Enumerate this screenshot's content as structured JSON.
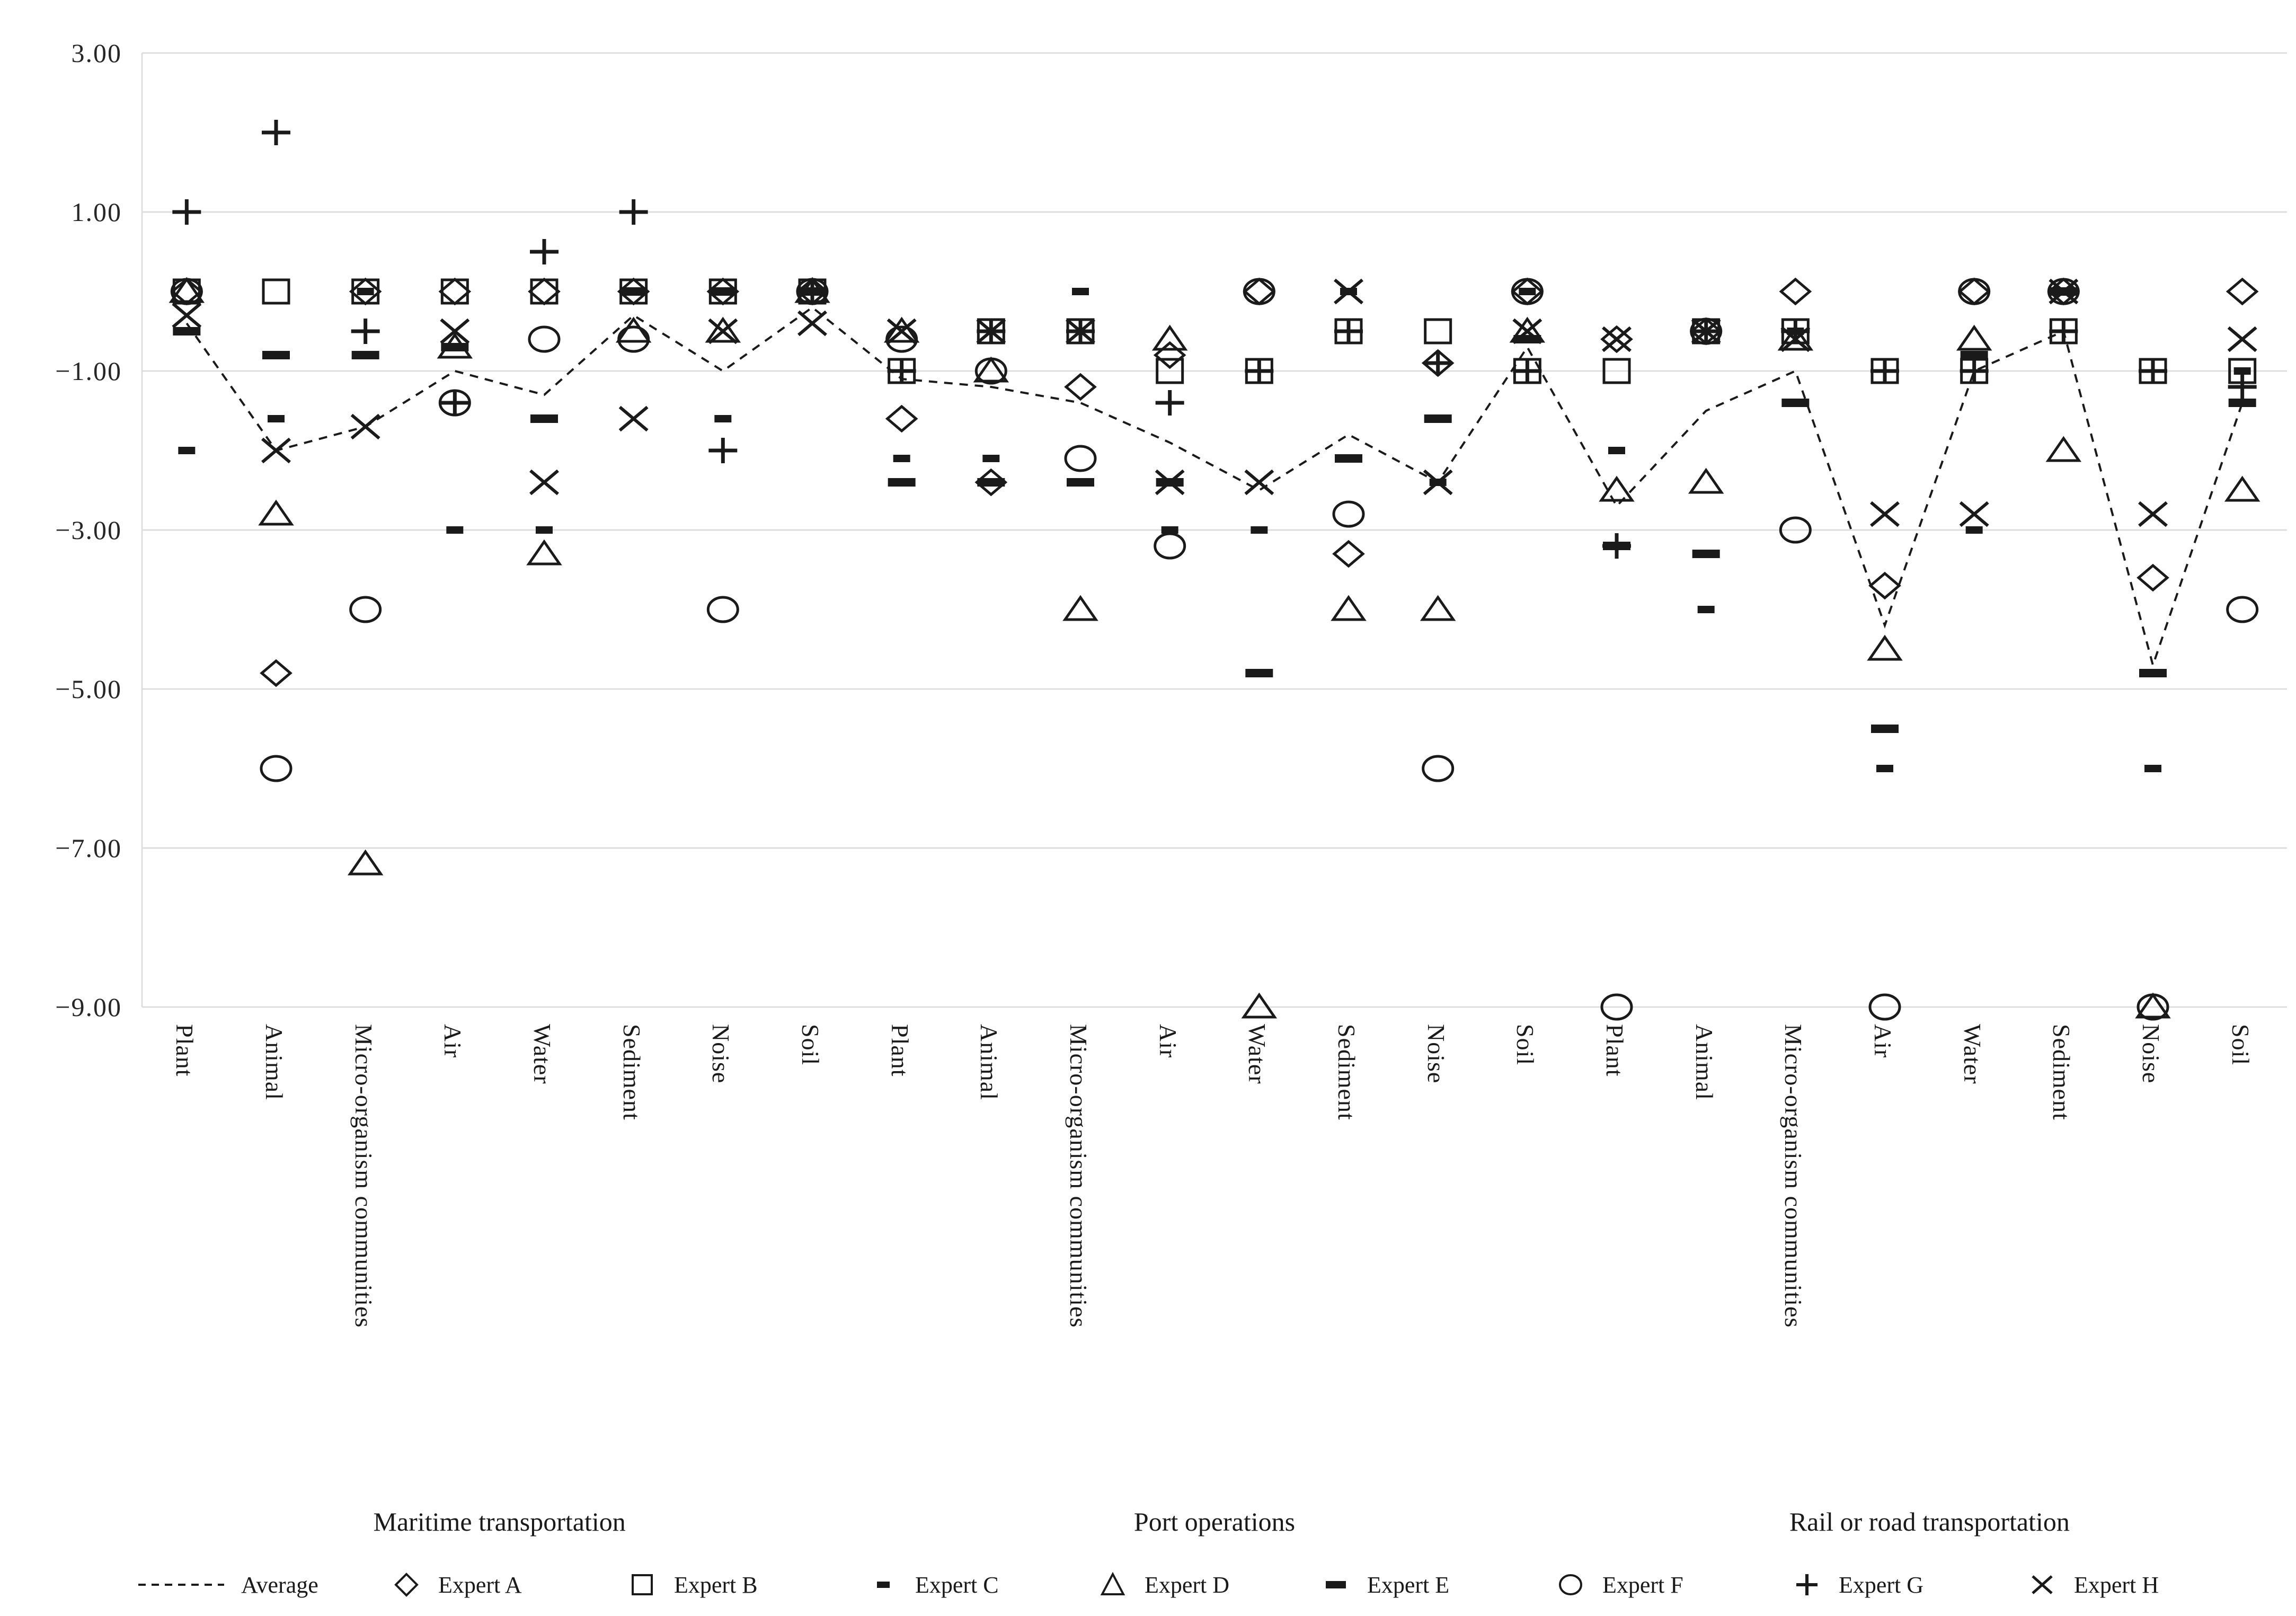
{
  "chart_data": {
    "type": "scatter",
    "title": "",
    "xlabel": "",
    "ylabel": "",
    "ylim": [
      -9,
      3
    ],
    "grid": "horizontal",
    "legend_position": "bottom",
    "yticks": [
      3,
      1,
      -1,
      -3,
      -5,
      -7,
      -9
    ],
    "ytick_labels": [
      "3.00",
      "1.00",
      "−1.00",
      "−3.00",
      "−5.00",
      "−7.00",
      "−9.00"
    ],
    "groups": [
      {
        "label": "Maritime transportation",
        "start": 0,
        "end": 7
      },
      {
        "label": "Port operations",
        "start": 8,
        "end": 15
      },
      {
        "label": "Rail or road transportation",
        "start": 16,
        "end": 23
      }
    ],
    "categories": [
      "Plant",
      "Animal",
      "Micro-organism communities",
      "Air",
      "Water",
      "Sediment",
      "Noise",
      "Soil",
      "Plant",
      "Animal",
      "Micro-organism communities",
      "Air",
      "Water",
      "Sediment",
      "Noise",
      "Soil",
      "Plant",
      "Animal",
      "Micro-organism communities",
      "Air",
      "Water",
      "Sediment",
      "Noise",
      "Soil"
    ],
    "series": [
      {
        "name": "Average",
        "marker": "line-dashed",
        "values": [
          -0.4,
          -2.0,
          -1.7,
          -1.0,
          -1.3,
          -0.3,
          -1.0,
          -0.2,
          -1.1,
          -1.2,
          -1.4,
          -1.9,
          -2.5,
          -1.8,
          -2.4,
          -0.7,
          -2.7,
          -1.5,
          -1.0,
          -4.2,
          -1.0,
          -0.5,
          -4.7,
          -1.4
        ]
      },
      {
        "name": "Expert A",
        "marker": "diamond",
        "values": [
          0,
          -4.8,
          0,
          0,
          0,
          0,
          0,
          0,
          -1.6,
          -2.4,
          -1.2,
          -0.8,
          0,
          -3.3,
          -0.9,
          0,
          -0.6,
          -0.5,
          0,
          -3.7,
          0,
          0,
          -3.6,
          0
        ]
      },
      {
        "name": "Expert B",
        "marker": "square",
        "values": [
          0,
          0,
          0,
          0,
          0,
          0,
          0,
          0,
          -1.0,
          -0.5,
          -0.5,
          -1.0,
          -1.0,
          -0.5,
          -0.5,
          -1.0,
          -1.0,
          -0.5,
          -0.5,
          -1.0,
          -1.0,
          -0.5,
          -1.0,
          -1.0
        ]
      },
      {
        "name": "Expert C",
        "marker": "dash-small",
        "values": [
          -2.0,
          -1.6,
          0,
          -3.0,
          -3.0,
          0,
          -1.6,
          0,
          -2.1,
          -2.1,
          0,
          -3.0,
          -3.0,
          0,
          -2.4,
          0,
          -2.0,
          -4.0,
          -0.5,
          -6.0,
          -3.0,
          0,
          -6.0,
          -1.0
        ]
      },
      {
        "name": "Expert D",
        "marker": "triangle",
        "values": [
          0,
          -2.8,
          -7.2,
          -0.7,
          -3.3,
          -0.5,
          -0.5,
          0,
          -0.5,
          -1.0,
          -4.0,
          -0.6,
          -9.0,
          -4.0,
          -4.0,
          -0.5,
          -2.5,
          -2.4,
          -0.6,
          -4.5,
          -0.6,
          -2.0,
          -9.0,
          -2.5
        ]
      },
      {
        "name": "Expert E",
        "marker": "dash-bold",
        "values": [
          -0.5,
          -0.8,
          -0.8,
          -0.7,
          -1.6,
          0,
          0,
          0,
          -2.4,
          -2.4,
          -2.4,
          -2.4,
          -4.8,
          -2.1,
          -1.6,
          -0.6,
          -3.2,
          -3.3,
          -1.4,
          -5.5,
          -0.8,
          0,
          -4.8,
          -1.4
        ]
      },
      {
        "name": "Expert F",
        "marker": "circle",
        "values": [
          0,
          -6.0,
          -4.0,
          -1.4,
          -0.6,
          -0.6,
          -4.0,
          0,
          -0.6,
          -1.0,
          -2.1,
          -3.2,
          0,
          -2.8,
          -6.0,
          0,
          -9.0,
          -0.5,
          -3.0,
          -9.0,
          0,
          0,
          -9.0,
          -4.0
        ]
      },
      {
        "name": "Expert G",
        "marker": "plus",
        "values": [
          1.0,
          2.0,
          -0.5,
          -1.4,
          0.5,
          1.0,
          -2.0,
          0,
          -1.0,
          -0.5,
          -0.5,
          -1.4,
          -1.0,
          -0.5,
          -0.9,
          -1.0,
          -3.2,
          -0.5,
          -0.5,
          -1.0,
          -1.0,
          -0.5,
          -1.0,
          -1.2
        ]
      },
      {
        "name": "Expert H",
        "marker": "cross",
        "values": [
          -0.3,
          -2.0,
          -1.7,
          -0.5,
          -2.4,
          -1.6,
          -0.5,
          -0.4,
          -0.5,
          -0.5,
          -0.5,
          -2.4,
          -2.4,
          0,
          -2.4,
          -0.5,
          -0.6,
          -0.5,
          -0.6,
          -2.8,
          -2.8,
          0,
          -2.8,
          -0.6
        ]
      }
    ]
  },
  "legend": {
    "items": [
      {
        "name": "Average",
        "marker": "line-dashed"
      },
      {
        "name": "Expert A",
        "marker": "diamond"
      },
      {
        "name": "Expert B",
        "marker": "square"
      },
      {
        "name": "Expert C",
        "marker": "dash-small"
      },
      {
        "name": "Expert D",
        "marker": "triangle"
      },
      {
        "name": "Expert E",
        "marker": "dash-bold"
      },
      {
        "name": "Expert F",
        "marker": "circle"
      },
      {
        "name": "Expert G",
        "marker": "plus"
      },
      {
        "name": "Expert H",
        "marker": "cross"
      }
    ]
  },
  "colors": {
    "marker": "#1a1a1a",
    "grid": "#d9d9d9",
    "text": "#262626",
    "background": "#ffffff"
  }
}
